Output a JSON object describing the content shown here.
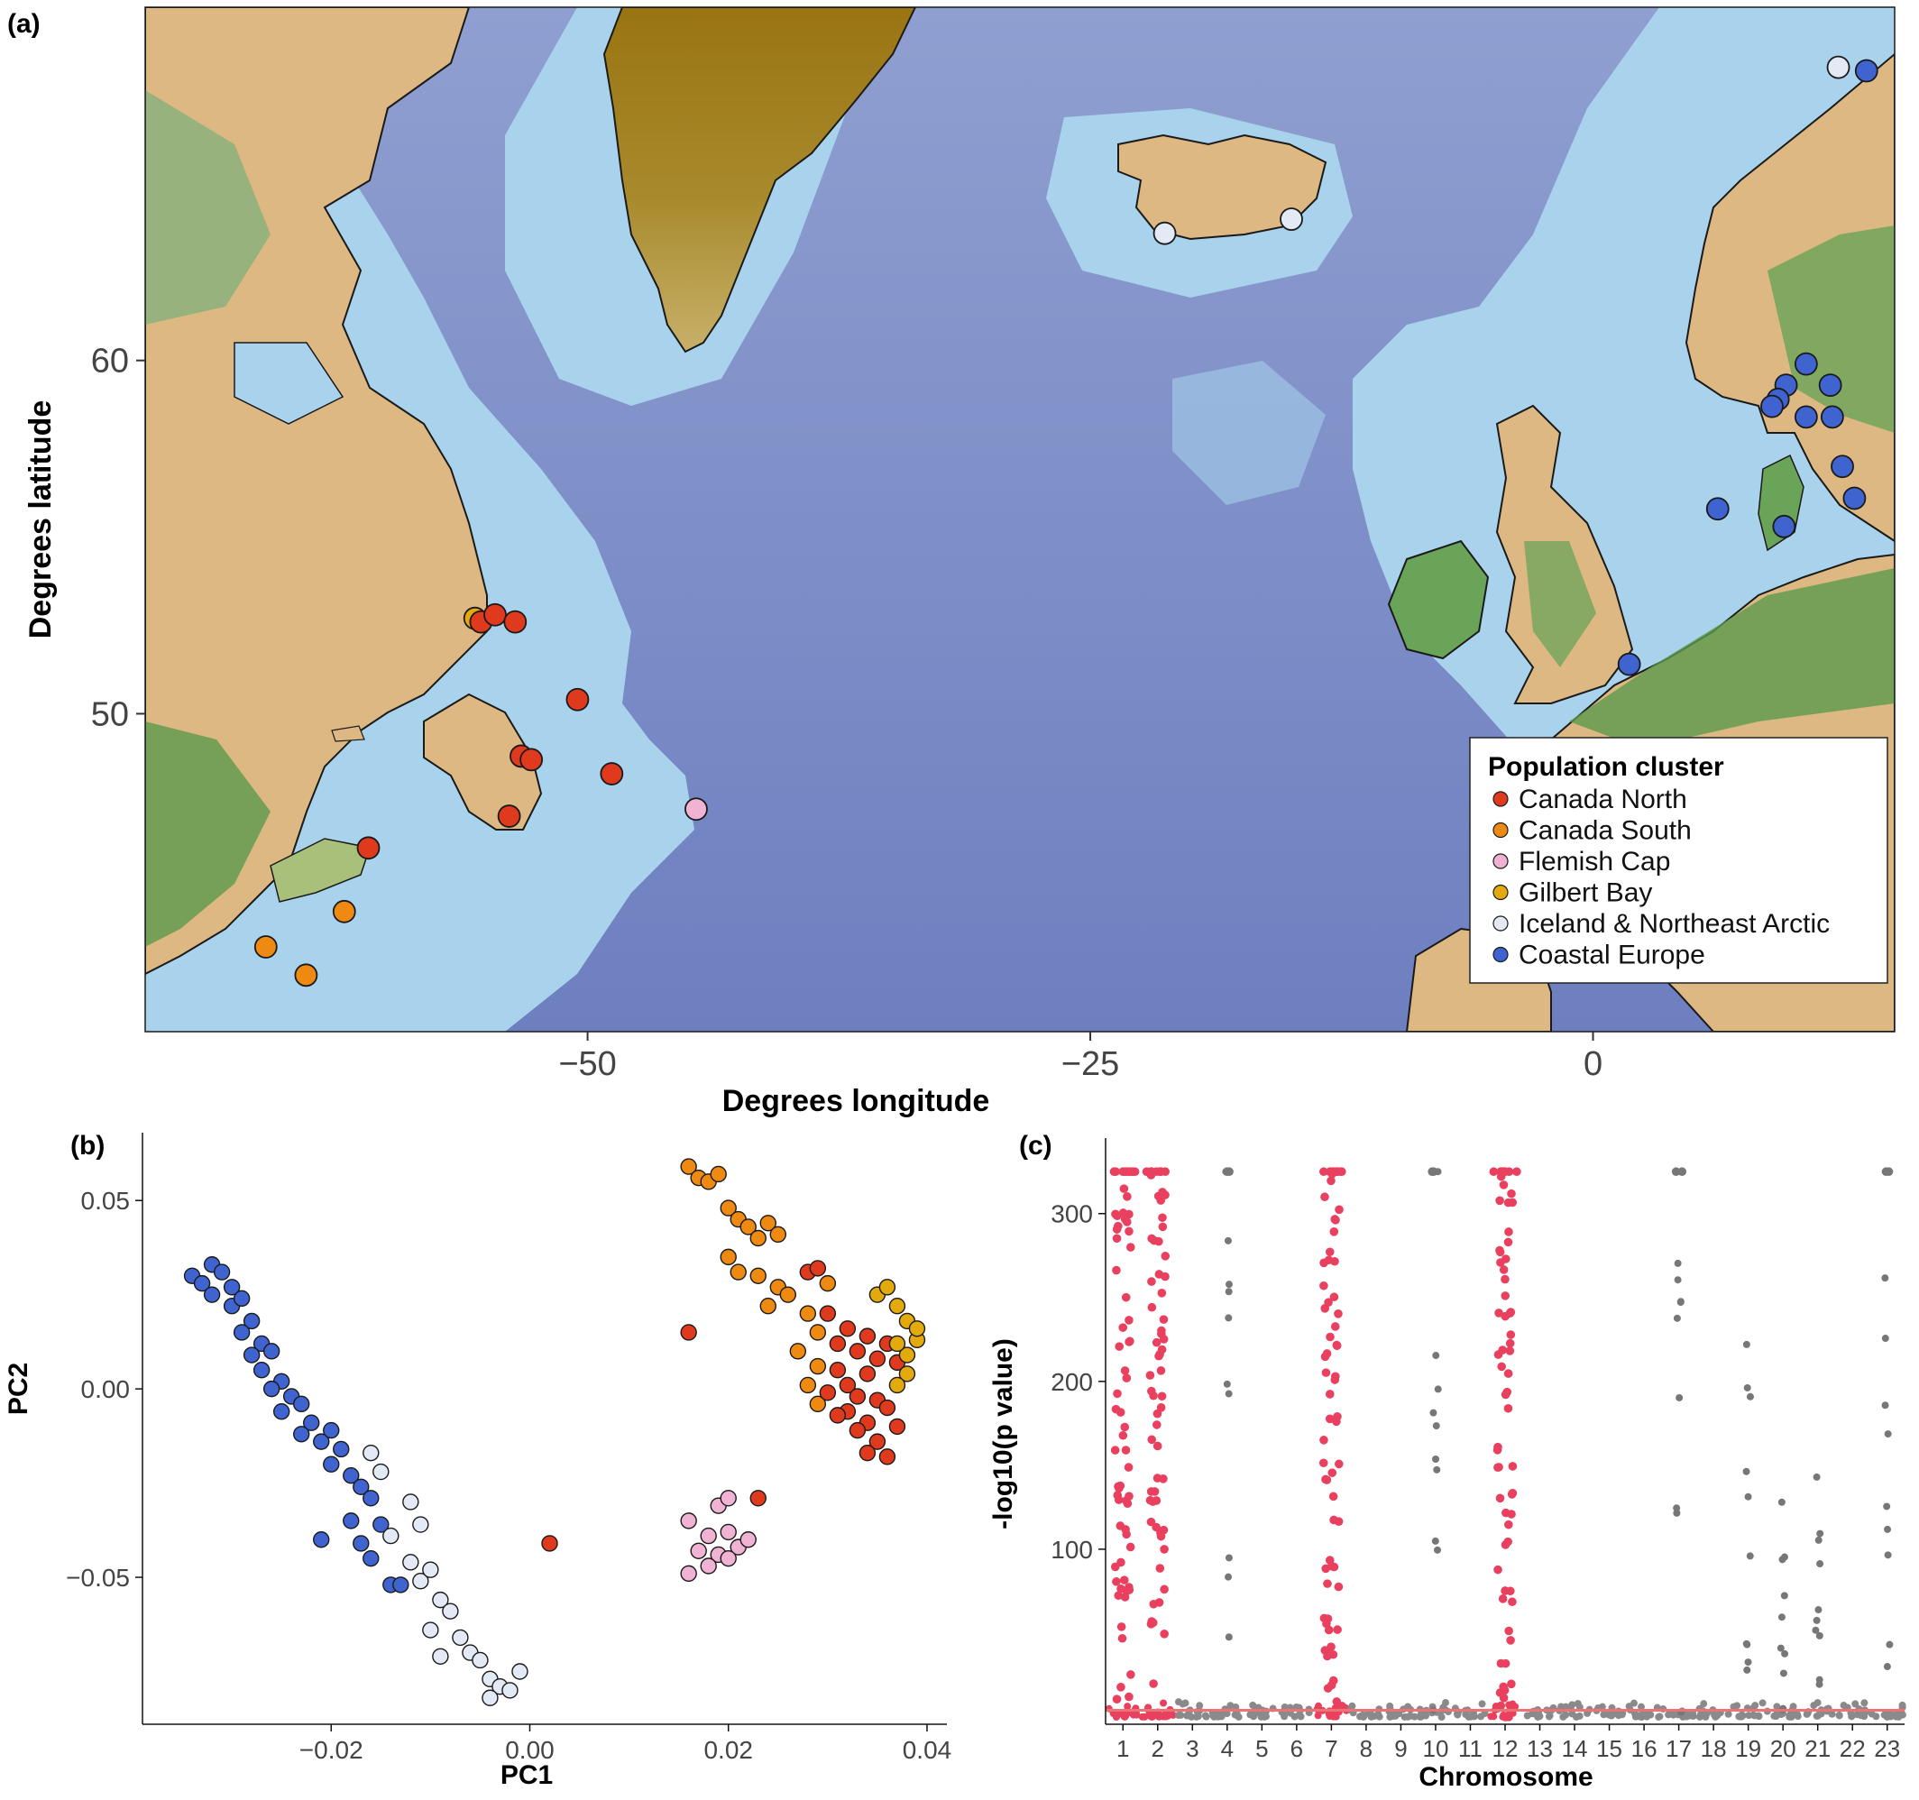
{
  "panel_a": {
    "label": "(a)",
    "xlabel": "Degrees longitude",
    "ylabel": "Degrees latitude",
    "x_ticks": [
      {
        "value": -50,
        "label": "−50"
      },
      {
        "value": -25,
        "label": "−25"
      },
      {
        "value": 0,
        "label": "0"
      }
    ],
    "y_ticks": [
      {
        "value": 60,
        "label": "60"
      },
      {
        "value": 50,
        "label": "50"
      }
    ],
    "xlim": [
      -72,
      15
    ],
    "ylim": [
      41,
      70
    ],
    "legend": {
      "title": "Population cluster",
      "position": "bottom-right",
      "entries": [
        {
          "name": "Canada North",
          "color": "#e03a1e"
        },
        {
          "name": "Canada South",
          "color": "#ee8a12"
        },
        {
          "name": "Flemish Cap",
          "color": "#f0b3d3"
        },
        {
          "name": "Gilbert Bay",
          "color": "#e2aa0c"
        },
        {
          "name": "Iceland & Northeast Arctic",
          "color": "#e3e9f5"
        },
        {
          "name": "Coastal Europe",
          "color": "#3f63cf"
        }
      ]
    },
    "sites": [
      {
        "cluster": "Gilbert Bay",
        "lon": -55.6,
        "lat": 52.7
      },
      {
        "cluster": "Canada North",
        "lon": -55.3,
        "lat": 52.6
      },
      {
        "cluster": "Canada North",
        "lon": -54.6,
        "lat": 52.8
      },
      {
        "cluster": "Canada North",
        "lon": -53.6,
        "lat": 52.6
      },
      {
        "cluster": "Canada North",
        "lon": -50.5,
        "lat": 50.4
      },
      {
        "cluster": "Canada North",
        "lon": -53.3,
        "lat": 48.8
      },
      {
        "cluster": "Canada North",
        "lon": -52.8,
        "lat": 48.7
      },
      {
        "cluster": "Canada North",
        "lon": -48.8,
        "lat": 48.3
      },
      {
        "cluster": "Canada North",
        "lon": -53.9,
        "lat": 47.1
      },
      {
        "cluster": "Canada North",
        "lon": -60.9,
        "lat": 46.2
      },
      {
        "cluster": "Flemish Cap",
        "lon": -44.6,
        "lat": 47.3
      },
      {
        "cluster": "Canada South",
        "lon": -62.1,
        "lat": 44.4
      },
      {
        "cluster": "Canada South",
        "lon": -66.0,
        "lat": 43.4
      },
      {
        "cluster": "Canada South",
        "lon": -64.0,
        "lat": 42.6
      },
      {
        "cluster": "Iceland & Northeast Arctic",
        "lon": -21.3,
        "lat": 63.6
      },
      {
        "cluster": "Iceland & Northeast Arctic",
        "lon": -15.0,
        "lat": 64.0
      },
      {
        "cluster": "Iceland & Northeast Arctic",
        "lon": 12.2,
        "lat": 68.3
      },
      {
        "cluster": "Coastal Europe",
        "lon": 13.6,
        "lat": 68.2
      },
      {
        "cluster": "Coastal Europe",
        "lon": 10.6,
        "lat": 59.9
      },
      {
        "cluster": "Coastal Europe",
        "lon": 9.6,
        "lat": 59.3
      },
      {
        "cluster": "Coastal Europe",
        "lon": 9.2,
        "lat": 58.9
      },
      {
        "cluster": "Coastal Europe",
        "lon": 8.9,
        "lat": 58.7
      },
      {
        "cluster": "Coastal Europe",
        "lon": 11.8,
        "lat": 59.3
      },
      {
        "cluster": "Coastal Europe",
        "lon": 10.6,
        "lat": 58.4
      },
      {
        "cluster": "Coastal Europe",
        "lon": 11.9,
        "lat": 58.4
      },
      {
        "cluster": "Coastal Europe",
        "lon": 12.4,
        "lat": 57.0
      },
      {
        "cluster": "Coastal Europe",
        "lon": 13.0,
        "lat": 56.1
      },
      {
        "cluster": "Coastal Europe",
        "lon": 6.2,
        "lat": 55.8
      },
      {
        "cluster": "Coastal Europe",
        "lon": 9.5,
        "lat": 55.3
      },
      {
        "cluster": "Coastal Europe",
        "lon": 1.8,
        "lat": 51.4
      }
    ]
  },
  "panel_b": {
    "label": "(b)",
    "chart_data": {
      "type": "scatter",
      "xlabel": "PC1",
      "ylabel": "PC2",
      "xlim": [
        -0.039,
        0.042
      ],
      "ylim": [
        -0.089,
        0.068
      ],
      "x_ticks": [
        {
          "value": -0.02,
          "label": "−0.02"
        },
        {
          "value": 0.0,
          "label": "0.00"
        },
        {
          "value": 0.02,
          "label": "0.02"
        },
        {
          "value": 0.04,
          "label": "0.04"
        }
      ],
      "y_ticks": [
        {
          "value": 0.05,
          "label": "0.05"
        },
        {
          "value": 0.0,
          "label": "0.00"
        },
        {
          "value": -0.05,
          "label": "−0.05"
        }
      ],
      "series": [
        {
          "cluster": "Coastal Europe",
          "color": "#3f63cf",
          "points": [
            [
              -0.034,
              0.03
            ],
            [
              -0.033,
              0.028
            ],
            [
              -0.032,
              0.033
            ],
            [
              -0.031,
              0.031
            ],
            [
              -0.03,
              0.027
            ],
            [
              -0.032,
              0.025
            ],
            [
              -0.03,
              0.022
            ],
            [
              -0.029,
              0.024
            ],
            [
              -0.028,
              0.018
            ],
            [
              -0.029,
              0.015
            ],
            [
              -0.027,
              0.012
            ],
            [
              -0.028,
              0.009
            ],
            [
              -0.026,
              0.01
            ],
            [
              -0.027,
              0.005
            ],
            [
              -0.025,
              0.002
            ],
            [
              -0.026,
              0.0
            ],
            [
              -0.024,
              -0.002
            ],
            [
              -0.025,
              -0.006
            ],
            [
              -0.023,
              -0.004
            ],
            [
              -0.022,
              -0.009
            ],
            [
              -0.023,
              -0.012
            ],
            [
              -0.021,
              -0.014
            ],
            [
              -0.02,
              -0.011
            ],
            [
              -0.019,
              -0.016
            ],
            [
              -0.02,
              -0.02
            ],
            [
              -0.018,
              -0.023
            ],
            [
              -0.017,
              -0.026
            ],
            [
              -0.016,
              -0.029
            ],
            [
              -0.018,
              -0.035
            ],
            [
              -0.015,
              -0.036
            ],
            [
              -0.017,
              -0.041
            ],
            [
              -0.021,
              -0.04
            ],
            [
              -0.016,
              -0.045
            ],
            [
              -0.014,
              -0.052
            ],
            [
              -0.013,
              -0.052
            ]
          ]
        },
        {
          "cluster": "Iceland & Northeast Arctic",
          "color": "#e3e9f5",
          "points": [
            [
              -0.016,
              -0.017
            ],
            [
              -0.015,
              -0.022
            ],
            [
              -0.014,
              -0.039
            ],
            [
              -0.012,
              -0.03
            ],
            [
              -0.011,
              -0.036
            ],
            [
              -0.012,
              -0.046
            ],
            [
              -0.011,
              -0.051
            ],
            [
              -0.01,
              -0.048
            ],
            [
              -0.009,
              -0.056
            ],
            [
              -0.008,
              -0.059
            ],
            [
              -0.01,
              -0.064
            ],
            [
              -0.007,
              -0.066
            ],
            [
              -0.006,
              -0.07
            ],
            [
              -0.009,
              -0.071
            ],
            [
              -0.005,
              -0.072
            ],
            [
              -0.004,
              -0.077
            ],
            [
              -0.003,
              -0.079
            ],
            [
              -0.002,
              -0.08
            ],
            [
              -0.001,
              -0.075
            ],
            [
              -0.004,
              -0.082
            ]
          ]
        },
        {
          "cluster": "Canada South",
          "color": "#ee8a12",
          "points": [
            [
              0.016,
              0.059
            ],
            [
              0.017,
              0.056
            ],
            [
              0.018,
              0.055
            ],
            [
              0.019,
              0.057
            ],
            [
              0.02,
              0.048
            ],
            [
              0.021,
              0.045
            ],
            [
              0.022,
              0.043
            ],
            [
              0.024,
              0.044
            ],
            [
              0.025,
              0.041
            ],
            [
              0.023,
              0.04
            ],
            [
              0.02,
              0.035
            ],
            [
              0.021,
              0.031
            ],
            [
              0.023,
              0.03
            ],
            [
              0.025,
              0.027
            ],
            [
              0.026,
              0.025
            ],
            [
              0.024,
              0.022
            ],
            [
              0.028,
              0.02
            ],
            [
              0.029,
              0.015
            ],
            [
              0.027,
              0.01
            ],
            [
              0.029,
              0.006
            ],
            [
              0.028,
              0.001
            ],
            [
              0.029,
              -0.004
            ],
            [
              0.03,
              0.028
            ]
          ]
        },
        {
          "cluster": "Canada North",
          "color": "#e03a1e",
          "points": [
            [
              0.016,
              0.015
            ],
            [
              0.002,
              -0.041
            ],
            [
              0.023,
              -0.029
            ],
            [
              0.028,
              0.031
            ],
            [
              0.029,
              0.032
            ],
            [
              0.03,
              0.02
            ],
            [
              0.031,
              0.012
            ],
            [
              0.032,
              0.016
            ],
            [
              0.033,
              0.01
            ],
            [
              0.031,
              0.005
            ],
            [
              0.032,
              0.001
            ],
            [
              0.034,
              0.004
            ],
            [
              0.035,
              0.008
            ],
            [
              0.033,
              -0.002
            ],
            [
              0.032,
              -0.006
            ],
            [
              0.034,
              -0.009
            ],
            [
              0.035,
              -0.003
            ],
            [
              0.036,
              -0.005
            ],
            [
              0.037,
              -0.01
            ],
            [
              0.035,
              -0.014
            ],
            [
              0.034,
              -0.017
            ],
            [
              0.036,
              -0.018
            ],
            [
              0.033,
              -0.011
            ],
            [
              0.031,
              -0.007
            ],
            [
              0.036,
              0.012
            ],
            [
              0.034,
              0.014
            ],
            [
              0.037,
              0.007
            ],
            [
              0.03,
              -0.001
            ]
          ]
        },
        {
          "cluster": "Gilbert Bay",
          "color": "#e2aa0c",
          "points": [
            [
              0.035,
              0.025
            ],
            [
              0.036,
              0.027
            ],
            [
              0.037,
              0.022
            ],
            [
              0.038,
              0.018
            ],
            [
              0.039,
              0.013
            ],
            [
              0.038,
              0.009
            ],
            [
              0.037,
              0.012
            ],
            [
              0.039,
              0.016
            ],
            [
              0.038,
              0.004
            ],
            [
              0.037,
              0.001
            ]
          ]
        },
        {
          "cluster": "Flemish Cap",
          "color": "#f0b3d3",
          "points": [
            [
              0.016,
              -0.035
            ],
            [
              0.018,
              -0.039
            ],
            [
              0.019,
              -0.031
            ],
            [
              0.02,
              -0.029
            ],
            [
              0.02,
              -0.038
            ],
            [
              0.021,
              -0.042
            ],
            [
              0.019,
              -0.044
            ],
            [
              0.022,
              -0.04
            ],
            [
              0.018,
              -0.047
            ],
            [
              0.016,
              -0.049
            ],
            [
              0.017,
              -0.043
            ],
            [
              0.02,
              -0.045
            ]
          ]
        }
      ]
    }
  },
  "panel_c": {
    "label": "(c)",
    "chart_data": {
      "type": "scatter",
      "xlabel": "Chromosome",
      "ylabel": "-log10(p value)",
      "ylim": [
        0,
        345
      ],
      "y_ticks": [
        100,
        200,
        300
      ],
      "categories": [
        "1",
        "2",
        "3",
        "4",
        "5",
        "6",
        "7",
        "8",
        "9",
        "10",
        "11",
        "12",
        "13",
        "14",
        "15",
        "16",
        "17",
        "18",
        "19",
        "20",
        "21",
        "22",
        "23"
      ],
      "highlight_color": "#e8405e",
      "base_color": "#777777",
      "threshold_line_color": "#ea7373",
      "highlight_chromosomes": [
        "1",
        "2",
        "7",
        "12"
      ],
      "peaks": [
        {
          "chromosome": "1",
          "max": 325
        },
        {
          "chromosome": "2",
          "max": 325
        },
        {
          "chromosome": "4",
          "max": 325
        },
        {
          "chromosome": "7",
          "max": 325
        },
        {
          "chromosome": "10",
          "max": 325
        },
        {
          "chromosome": "12",
          "max": 325
        },
        {
          "chromosome": "17",
          "max": 325
        },
        {
          "chromosome": "19",
          "max": 222
        },
        {
          "chromosome": "20",
          "max": 128
        },
        {
          "chromosome": "21",
          "max": 143
        },
        {
          "chromosome": "23",
          "max": 325
        }
      ]
    }
  }
}
